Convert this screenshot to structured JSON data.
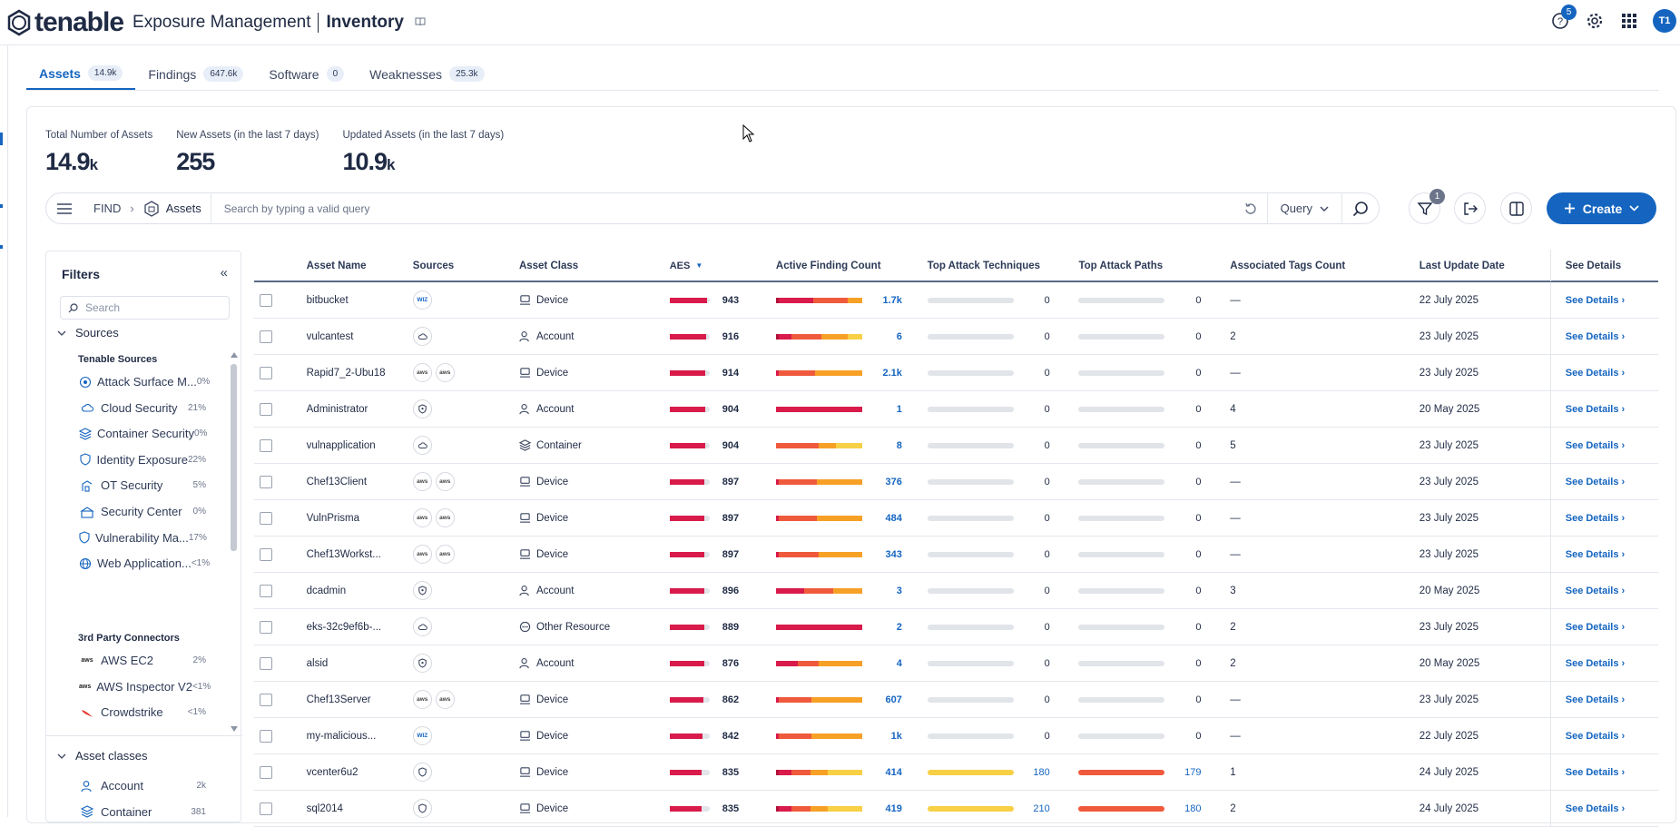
{
  "app": {
    "brand": "tenable",
    "product": "Exposure Management",
    "page_title": "Inventory",
    "notif_count": "5",
    "avatar": "T1"
  },
  "tabs": [
    {
      "label": "Assets",
      "count": "14.9k",
      "active": true
    },
    {
      "label": "Findings",
      "count": "647.6k"
    },
    {
      "label": "Software",
      "count": "0"
    },
    {
      "label": "Weaknesses",
      "count": "25.3k"
    }
  ],
  "stats": [
    {
      "label": "Total Number of Assets",
      "value": "14.9",
      "unit": "k"
    },
    {
      "label": "New Assets (in the last 7 days)",
      "value": "255",
      "unit": ""
    },
    {
      "label": "Updated Assets (in the last 7 days)",
      "value": "10.9",
      "unit": "k"
    }
  ],
  "query": {
    "find": "FIND",
    "object": "Assets",
    "placeholder": "Search by typing a valid query",
    "query_label": "Query",
    "filter_count": "1",
    "create_label": "Create"
  },
  "filters": {
    "title": "Filters",
    "search_placeholder": "Search",
    "sources_label": "Sources",
    "tenable_group": "Tenable Sources",
    "tenable_items": [
      {
        "label": "Attack Surface M...",
        "pct": "0%",
        "icon": "attack-surface-icon"
      },
      {
        "label": "Cloud Security",
        "pct": "21%",
        "icon": "cloud-icon"
      },
      {
        "label": "Container Security",
        "pct": "0%",
        "icon": "container-icon"
      },
      {
        "label": "Identity Exposure",
        "pct": "22%",
        "icon": "identity-shield-icon"
      },
      {
        "label": "OT Security",
        "pct": "5%",
        "icon": "ot-icon"
      },
      {
        "label": "Security Center",
        "pct": "0%",
        "icon": "security-center-icon"
      },
      {
        "label": "Vulnerability Ma...",
        "pct": "17%",
        "icon": "vuln-shield-icon"
      },
      {
        "label": "Web Application...",
        "pct": "<1%",
        "icon": "globe-icon"
      }
    ],
    "third_party_group": "3rd Party Connectors",
    "third_party_items": [
      {
        "label": "AWS EC2",
        "pct": "2%",
        "icon": "aws-icon"
      },
      {
        "label": "AWS Inspector V2",
        "pct": "<1%",
        "icon": "aws-icon"
      },
      {
        "label": "Crowdstrike",
        "pct": "<1%",
        "icon": "crowdstrike-icon"
      }
    ],
    "asset_classes_label": "Asset classes",
    "asset_class_items": [
      {
        "label": "Account",
        "pct": "2k",
        "icon": "account-icon"
      },
      {
        "label": "Container",
        "pct": "381",
        "icon": "container-icon"
      }
    ]
  },
  "table": {
    "headers": {
      "name": "Asset Name",
      "sources": "Sources",
      "class": "Asset Class",
      "aes": "AES",
      "afc": "Active Finding Count",
      "tat": "Top Attack Techniques",
      "tap": "Top Attack Paths",
      "tags": "Associated Tags Count",
      "date": "Last Update Date",
      "details": "See Details"
    },
    "details_label": "See Details",
    "rows": [
      {
        "name": "bitbucket",
        "sources": [
          "wiz"
        ],
        "class": "Device",
        "aes": "943",
        "aes_frac": 0.94,
        "afc": "1.7k",
        "afc_mix": [
          3,
          40,
          40,
          17
        ],
        "tat": "0",
        "tap": "0",
        "tags": "—",
        "date": "22 July 2025"
      },
      {
        "name": "vulcantest",
        "sources": [
          "cloud"
        ],
        "class": "Account",
        "aes": "916",
        "aes_frac": 0.91,
        "afc": "6",
        "afc_mix": [
          3,
          15,
          35,
          30,
          17
        ],
        "tat": "0",
        "tap": "0",
        "tags": "2",
        "date": "23 July 2025"
      },
      {
        "name": "Rapid7_2-Ubu18",
        "sources": [
          "aws",
          "aws"
        ],
        "class": "Device",
        "aes": "914",
        "aes_frac": 0.9,
        "afc": "2.1k",
        "afc_mix": [
          3,
          42,
          55
        ],
        "tat": "0",
        "tap": "0",
        "tags": "—",
        "date": "23 July 2025"
      },
      {
        "name": "Administrator",
        "sources": [
          "shield"
        ],
        "class": "Account",
        "aes": "904",
        "aes_frac": 0.9,
        "afc": "1",
        "afc_mix": [
          100
        ],
        "tat": "0",
        "tap": "0",
        "tags": "4",
        "date": "20 May 2025"
      },
      {
        "name": "vulnapplication",
        "sources": [
          "cloud"
        ],
        "class": "Container",
        "aes": "904",
        "aes_frac": 0.9,
        "afc": "8",
        "afc_mix": [
          0,
          50,
          20,
          30
        ],
        "tat": "0",
        "tap": "0",
        "tags": "5",
        "date": "23 July 2025"
      },
      {
        "name": "Chef13Client",
        "sources": [
          "aws",
          "aws"
        ],
        "class": "Device",
        "aes": "897",
        "aes_frac": 0.88,
        "afc": "376",
        "afc_mix": [
          3,
          45,
          52
        ],
        "tat": "0",
        "tap": "0",
        "tags": "—",
        "date": "23 July 2025"
      },
      {
        "name": "VulnPrisma",
        "sources": [
          "aws",
          "aws"
        ],
        "class": "Device",
        "aes": "897",
        "aes_frac": 0.88,
        "afc": "484",
        "afc_mix": [
          3,
          45,
          52
        ],
        "tat": "0",
        "tap": "0",
        "tags": "—",
        "date": "23 July 2025"
      },
      {
        "name": "Chef13Workst...",
        "sources": [
          "aws",
          "aws"
        ],
        "class": "Device",
        "aes": "897",
        "aes_frac": 0.88,
        "afc": "343",
        "afc_mix": [
          3,
          47,
          50
        ],
        "tat": "0",
        "tap": "0",
        "tags": "—",
        "date": "23 July 2025"
      },
      {
        "name": "dcadmin",
        "sources": [
          "shield"
        ],
        "class": "Account",
        "aes": "896",
        "aes_frac": 0.88,
        "afc": "3",
        "afc_mix": [
          33,
          33,
          34
        ],
        "tat": "0",
        "tap": "0",
        "tags": "3",
        "date": "20 May 2025"
      },
      {
        "name": "eks-32c9ef6b-...",
        "sources": [
          "cloud"
        ],
        "class": "Other Resource",
        "aes": "889",
        "aes_frac": 0.87,
        "afc": "2",
        "afc_mix": [
          100
        ],
        "tat": "0",
        "tap": "0",
        "tags": "2",
        "date": "23 July 2025"
      },
      {
        "name": "alsid",
        "sources": [
          "shield"
        ],
        "class": "Account",
        "aes": "876",
        "aes_frac": 0.86,
        "afc": "4",
        "afc_mix": [
          25,
          25,
          50
        ],
        "tat": "0",
        "tap": "0",
        "tags": "2",
        "date": "20 May 2025"
      },
      {
        "name": "Chef13Server",
        "sources": [
          "aws",
          "aws"
        ],
        "class": "Device",
        "aes": "862",
        "aes_frac": 0.84,
        "afc": "607",
        "afc_mix": [
          3,
          38,
          59
        ],
        "tat": "0",
        "tap": "0",
        "tags": "—",
        "date": "23 July 2025"
      },
      {
        "name": "my-malicious...",
        "sources": [
          "wiz"
        ],
        "class": "Device",
        "aes": "842",
        "aes_frac": 0.82,
        "afc": "1k",
        "afc_mix": [
          3,
          38,
          59
        ],
        "tat": "0",
        "tap": "0",
        "tags": "—",
        "date": "22 July 2025"
      },
      {
        "name": "vcenter6u2",
        "sources": [
          "vshield"
        ],
        "class": "Device",
        "aes": "835",
        "aes_frac": 0.8,
        "afc": "414",
        "afc_mix": [
          3,
          15,
          22,
          20,
          40
        ],
        "tat": "180",
        "tat_frac": 1.0,
        "tap": "179",
        "tap_frac": 1.0,
        "tags": "1",
        "date": "24 July 2025"
      },
      {
        "name": "sql2014",
        "sources": [
          "vshield"
        ],
        "class": "Device",
        "aes": "835",
        "aes_frac": 0.8,
        "afc": "419",
        "afc_mix": [
          3,
          15,
          22,
          20,
          40
        ],
        "tat": "210",
        "tat_frac": 1.0,
        "tap": "180",
        "tap_frac": 1.0,
        "tags": "2",
        "date": "24 July 2025"
      }
    ]
  },
  "colors": {
    "accent": "#1565c0",
    "critical": "#d81b4a",
    "high": "#f05a3c",
    "medium": "#f7a026",
    "low": "#f7d046",
    "darkred": "#b0123a"
  }
}
